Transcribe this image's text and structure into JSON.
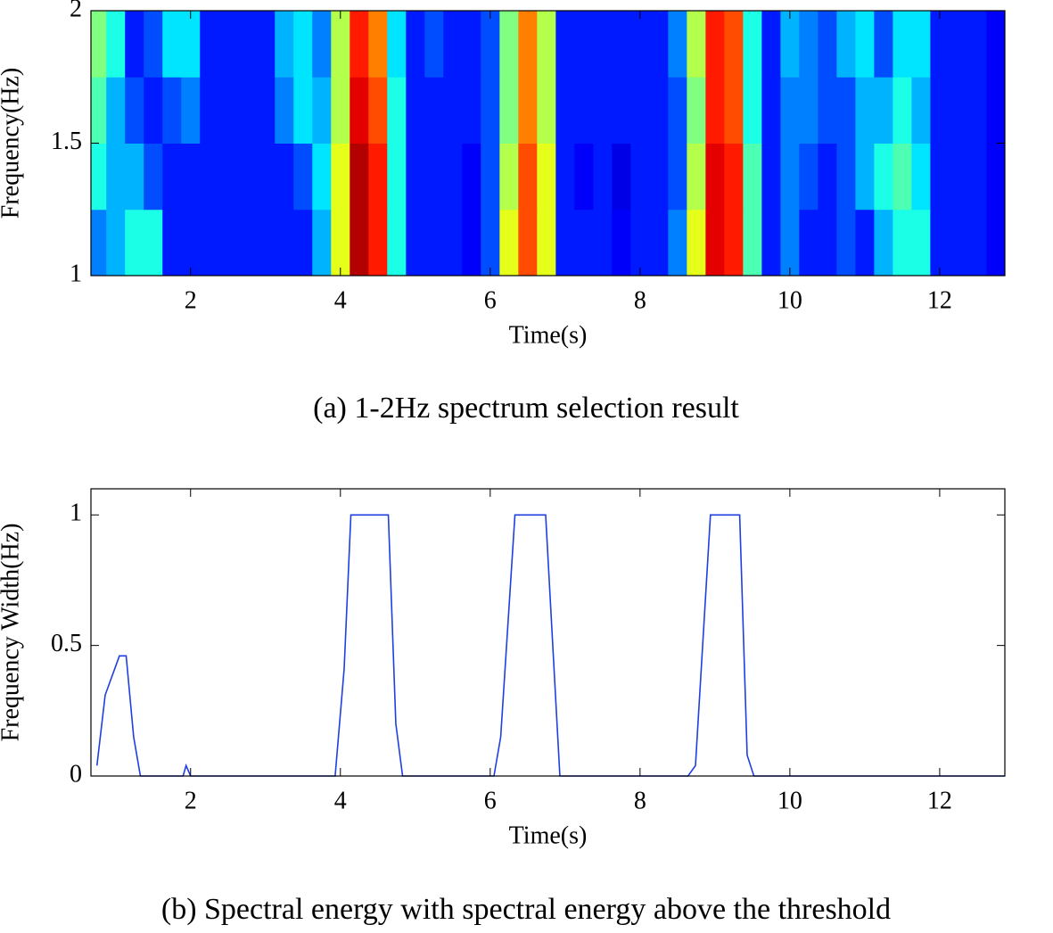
{
  "chart_data": [
    {
      "type": "heatmap",
      "xlabel": "Time(s)",
      "ylabel": "Frequency(Hz)",
      "caption": "(a) 1-2Hz spectrum selection result",
      "colormap": "jet",
      "zlim": [
        0,
        1
      ],
      "x": [
        0.75,
        1.0,
        1.25,
        1.5,
        1.75,
        2.0,
        2.25,
        2.5,
        2.75,
        3.0,
        3.25,
        3.5,
        3.75,
        4.0,
        4.25,
        4.5,
        4.75,
        5.0,
        5.25,
        5.5,
        5.75,
        6.0,
        6.25,
        6.5,
        6.75,
        7.0,
        7.25,
        7.5,
        7.75,
        8.0,
        8.25,
        8.5,
        8.75,
        9.0,
        9.25,
        9.5,
        9.75,
        10.0,
        10.25,
        10.5,
        10.75,
        11.0,
        11.25,
        11.5,
        11.75,
        12.0,
        12.25,
        12.5,
        12.75
      ],
      "y": [
        1.125,
        1.375,
        1.625,
        1.875
      ],
      "z": [
        [
          0.25,
          0.3,
          0.4,
          0.4,
          0.15,
          0.15,
          0.15,
          0.15,
          0.15,
          0.15,
          0.15,
          0.15,
          0.3,
          0.6,
          0.95,
          0.85,
          0.4,
          0.15,
          0.15,
          0.15,
          0.12,
          0.2,
          0.6,
          0.8,
          0.6,
          0.15,
          0.15,
          0.15,
          0.12,
          0.15,
          0.15,
          0.25,
          0.6,
          0.9,
          0.85,
          0.45,
          0.15,
          0.25,
          0.15,
          0.15,
          0.2,
          0.15,
          0.3,
          0.4,
          0.4,
          0.15,
          0.15,
          0.15,
          0.12
        ],
        [
          0.4,
          0.3,
          0.3,
          0.2,
          0.15,
          0.15,
          0.15,
          0.15,
          0.15,
          0.15,
          0.15,
          0.2,
          0.35,
          0.6,
          0.95,
          0.85,
          0.4,
          0.15,
          0.15,
          0.15,
          0.12,
          0.2,
          0.55,
          0.8,
          0.6,
          0.15,
          0.12,
          0.15,
          0.1,
          0.15,
          0.15,
          0.2,
          0.55,
          0.9,
          0.85,
          0.45,
          0.15,
          0.25,
          0.2,
          0.15,
          0.2,
          0.3,
          0.4,
          0.45,
          0.35,
          0.15,
          0.15,
          0.15,
          0.12
        ],
        [
          0.45,
          0.3,
          0.2,
          0.15,
          0.2,
          0.25,
          0.15,
          0.15,
          0.15,
          0.15,
          0.25,
          0.35,
          0.3,
          0.55,
          0.9,
          0.8,
          0.4,
          0.15,
          0.15,
          0.15,
          0.15,
          0.2,
          0.5,
          0.75,
          0.55,
          0.15,
          0.15,
          0.15,
          0.15,
          0.15,
          0.15,
          0.2,
          0.5,
          0.85,
          0.8,
          0.4,
          0.15,
          0.25,
          0.25,
          0.2,
          0.2,
          0.3,
          0.3,
          0.4,
          0.3,
          0.15,
          0.15,
          0.15,
          0.12
        ],
        [
          0.5,
          0.4,
          0.15,
          0.2,
          0.35,
          0.35,
          0.15,
          0.15,
          0.15,
          0.15,
          0.3,
          0.35,
          0.25,
          0.55,
          0.85,
          0.75,
          0.35,
          0.15,
          0.2,
          0.15,
          0.15,
          0.2,
          0.5,
          0.75,
          0.55,
          0.15,
          0.15,
          0.15,
          0.15,
          0.15,
          0.15,
          0.25,
          0.55,
          0.85,
          0.8,
          0.4,
          0.15,
          0.3,
          0.25,
          0.2,
          0.3,
          0.35,
          0.2,
          0.35,
          0.35,
          0.15,
          0.15,
          0.15,
          0.12
        ]
      ],
      "xlim": [
        0.67,
        12.87
      ],
      "ylim": [
        1,
        2
      ],
      "xticks": [
        2,
        4,
        6,
        8,
        10,
        12
      ],
      "yticks": [
        1,
        1.5,
        2
      ]
    },
    {
      "type": "line",
      "xlabel": "Time(s)",
      "ylabel": "Frequency Width(Hz)",
      "caption": "(b) Spectral energy with spectral energy above the threshold",
      "x": [
        0.75,
        0.86,
        1.05,
        1.14,
        1.24,
        1.33,
        1.9,
        1.94,
        2.0,
        3.93,
        4.05,
        4.14,
        4.64,
        4.74,
        4.83,
        6.05,
        6.14,
        6.33,
        6.74,
        6.93,
        8.64,
        8.74,
        8.94,
        9.33,
        9.43,
        9.52,
        12.87
      ],
      "series": [
        {
          "color": "#1f3fe0",
          "values": [
            0.04,
            0.31,
            0.46,
            0.46,
            0.15,
            0,
            0,
            0.04,
            0,
            0,
            0.41,
            1,
            1,
            0.2,
            0,
            0,
            0.15,
            1,
            1,
            0,
            0,
            0.04,
            1,
            1,
            0.08,
            0,
            0
          ]
        }
      ],
      "xlim": [
        0.67,
        12.87
      ],
      "ylim": [
        0,
        1.1
      ],
      "xticks": [
        2,
        4,
        6,
        8,
        10,
        12
      ],
      "yticks": [
        0,
        0.5,
        1
      ]
    }
  ]
}
